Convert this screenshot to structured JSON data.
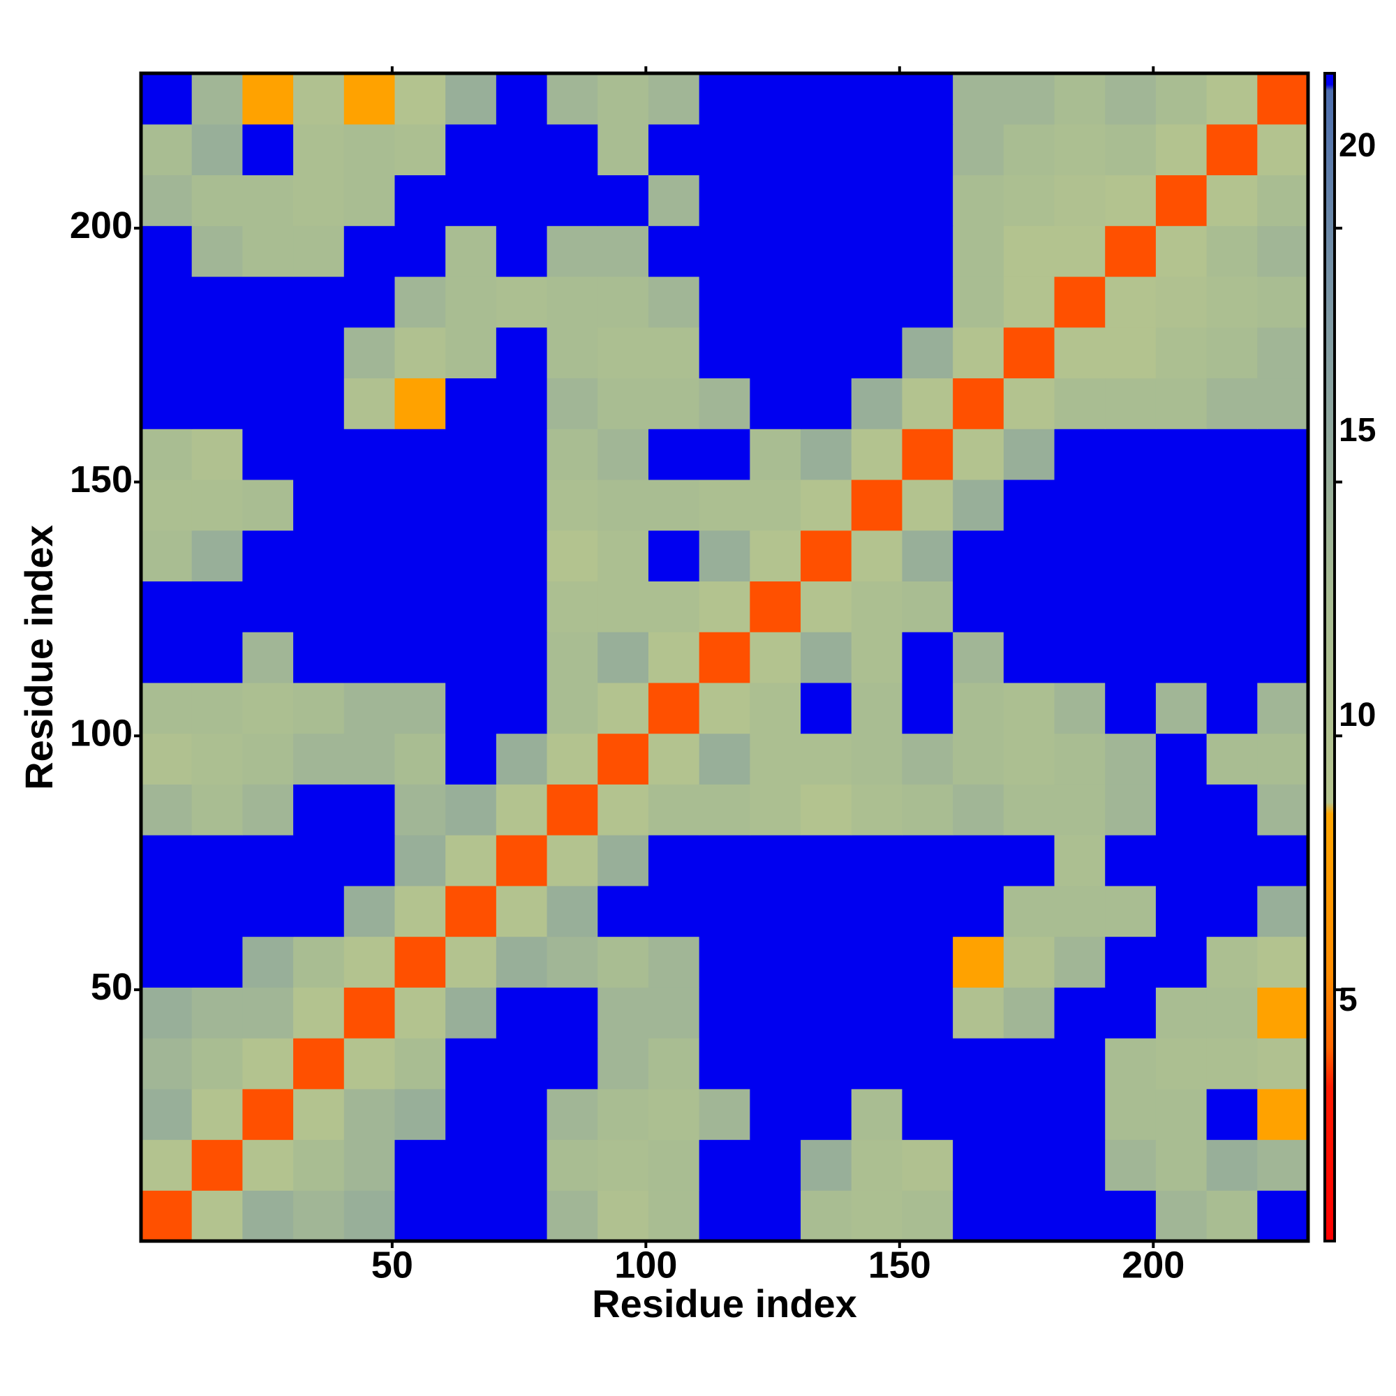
{
  "chart_data": {
    "type": "heatmap",
    "xlabel": "Residue index",
    "ylabel": "Residue index",
    "xlim": [
      0.5,
      230.5
    ],
    "ylim": [
      0.5,
      230.5
    ],
    "xticks": [
      50,
      100,
      150,
      200
    ],
    "yticks": [
      50,
      100,
      150,
      200
    ],
    "x": [
      5.5,
      15.5,
      25.5,
      35.5,
      45.5,
      55.5,
      65.5,
      75.5,
      85.5,
      95.5,
      105.5,
      115.5,
      125.5,
      135.5,
      145.5,
      155.5,
      165.5,
      175.5,
      185.5,
      195.5,
      205.5,
      215.5,
      225.5
    ],
    "y": [
      5.5,
      15.5,
      25.5,
      35.5,
      45.5,
      55.5,
      65.5,
      75.5,
      85.5,
      95.5,
      105.5,
      115.5,
      125.5,
      135.5,
      145.5,
      155.5,
      165.5,
      175.5,
      185.5,
      195.5,
      205.5,
      215.5,
      225.5
    ],
    "z": [
      [
        4,
        9,
        14,
        13,
        14,
        21.3,
        21.3,
        21.3,
        13,
        10,
        12,
        21.3,
        21.3,
        12,
        11,
        12,
        21.3,
        21.3,
        21.3,
        21.3,
        13,
        12,
        21.3
      ],
      [
        9,
        4,
        9,
        12,
        13,
        21.3,
        21.3,
        21.3,
        12,
        11,
        12,
        21.3,
        21.3,
        14,
        11,
        10,
        21.3,
        21.3,
        21.3,
        13,
        12,
        14,
        13
      ],
      [
        14,
        9,
        4,
        9,
        13,
        14,
        21.3,
        21.3,
        13,
        12,
        11,
        13,
        21.3,
        21.3,
        12,
        21.3,
        21.3,
        21.3,
        21.3,
        12,
        12,
        21.3,
        8
      ],
      [
        13,
        12,
        9,
        4,
        9,
        12,
        21.3,
        21.3,
        21.3,
        13,
        12,
        21.3,
        21.3,
        21.3,
        21.3,
        21.3,
        21.3,
        21.3,
        21.3,
        12,
        11,
        11,
        10
      ],
      [
        14,
        13,
        13,
        9,
        4,
        9,
        14,
        21.3,
        21.3,
        13,
        13,
        21.3,
        21.3,
        21.3,
        21.3,
        21.3,
        10,
        13,
        21.3,
        21.3,
        12,
        12,
        8
      ],
      [
        21.3,
        21.3,
        14,
        12,
        9,
        4,
        9,
        14,
        13,
        12,
        13,
        21.3,
        21.3,
        21.3,
        21.3,
        21.3,
        8,
        10,
        13,
        21.3,
        21.3,
        11,
        9
      ],
      [
        21.3,
        21.3,
        21.3,
        21.3,
        14,
        9,
        4,
        9,
        14,
        21.3,
        21.3,
        21.3,
        21.3,
        21.3,
        21.3,
        21.3,
        21.3,
        12,
        12,
        12,
        21.3,
        21.3,
        14
      ],
      [
        21.3,
        21.3,
        21.3,
        21.3,
        21.3,
        14,
        9,
        4,
        9,
        14,
        21.3,
        21.3,
        21.3,
        21.3,
        21.3,
        21.3,
        21.3,
        21.3,
        11,
        21.3,
        21.3,
        21.3,
        21.3
      ],
      [
        13,
        12,
        13,
        21.3,
        21.3,
        13,
        14,
        9,
        4,
        9,
        12,
        12,
        11,
        9,
        11,
        12,
        13,
        12,
        12,
        13,
        21.3,
        21.3,
        13
      ],
      [
        10,
        11,
        12,
        13,
        13,
        12,
        21.3,
        14,
        9,
        4,
        9,
        14,
        11,
        11,
        12,
        13,
        12,
        11,
        12,
        13,
        21.3,
        12,
        12
      ],
      [
        12,
        12,
        11,
        12,
        13,
        13,
        21.3,
        21.3,
        12,
        9,
        4,
        9,
        11,
        21.3,
        12,
        21.3,
        12,
        11,
        13,
        21.3,
        13,
        21.3,
        13
      ],
      [
        21.3,
        21.3,
        13,
        21.3,
        21.3,
        21.3,
        21.3,
        21.3,
        12,
        14,
        9,
        4,
        9,
        14,
        11,
        21.3,
        13,
        21.3,
        21.3,
        21.3,
        21.3,
        21.3,
        21.3
      ],
      [
        21.3,
        21.3,
        21.3,
        21.3,
        21.3,
        21.3,
        21.3,
        21.3,
        11,
        11,
        11,
        9,
        4,
        9,
        11,
        12,
        21.3,
        21.3,
        21.3,
        21.3,
        21.3,
        21.3,
        21.3
      ],
      [
        12,
        14,
        21.3,
        21.3,
        21.3,
        21.3,
        21.3,
        21.3,
        9,
        11,
        21.3,
        14,
        9,
        4,
        9,
        14,
        21.3,
        21.3,
        21.3,
        21.3,
        21.3,
        21.3,
        21.3
      ],
      [
        11,
        11,
        12,
        21.3,
        21.3,
        21.3,
        21.3,
        21.3,
        11,
        12,
        12,
        11,
        11,
        9,
        4,
        9,
        14,
        21.3,
        21.3,
        21.3,
        21.3,
        21.3,
        21.3
      ],
      [
        12,
        10,
        21.3,
        21.3,
        21.3,
        21.3,
        21.3,
        21.3,
        12,
        13,
        21.3,
        21.3,
        12,
        14,
        9,
        4,
        9,
        14,
        21.3,
        21.3,
        21.3,
        21.3,
        21.3
      ],
      [
        21.3,
        21.3,
        21.3,
        21.3,
        10,
        8,
        21.3,
        21.3,
        13,
        12,
        12,
        13,
        21.3,
        21.3,
        14,
        9,
        4,
        9,
        12,
        12,
        12,
        13,
        13
      ],
      [
        21.3,
        21.3,
        21.3,
        21.3,
        13,
        10,
        12,
        21.3,
        12,
        11,
        11,
        21.3,
        21.3,
        21.3,
        21.3,
        14,
        9,
        4,
        9,
        9,
        11,
        12,
        13
      ],
      [
        21.3,
        21.3,
        21.3,
        21.3,
        21.3,
        13,
        12,
        11,
        12,
        12,
        13,
        21.3,
        21.3,
        21.3,
        21.3,
        21.3,
        12,
        9,
        4,
        9,
        10,
        11,
        12
      ],
      [
        21.3,
        13,
        12,
        12,
        21.3,
        21.3,
        12,
        21.3,
        13,
        13,
        21.3,
        21.3,
        21.3,
        21.3,
        21.3,
        21.3,
        12,
        9,
        9,
        4,
        9,
        12,
        13
      ],
      [
        13,
        12,
        12,
        11,
        12,
        21.3,
        21.3,
        21.3,
        21.3,
        21.3,
        13,
        21.3,
        21.3,
        21.3,
        21.3,
        21.3,
        12,
        11,
        10,
        9,
        4,
        9,
        12
      ],
      [
        12,
        14,
        21.3,
        11,
        12,
        11,
        21.3,
        21.3,
        21.3,
        12,
        21.3,
        21.3,
        21.3,
        21.3,
        21.3,
        21.3,
        13,
        12,
        11,
        12,
        9,
        4,
        9
      ],
      [
        21.3,
        13,
        8,
        10,
        8,
        9,
        14,
        21.3,
        13,
        12,
        13,
        21.3,
        21.3,
        21.3,
        21.3,
        21.3,
        13,
        13,
        12,
        13,
        12,
        9,
        4
      ]
    ],
    "colorbar": {
      "lim": [
        0.8,
        21.3
      ],
      "ticks": [
        5,
        10,
        15,
        20
      ]
    },
    "colormap": [
      {
        "value": 0.8,
        "color": "#ff0000"
      },
      {
        "value": 3.5,
        "color": "#ff1a00"
      },
      {
        "value": 4.2,
        "color": "#ff6600"
      },
      {
        "value": 5.5,
        "color": "#ff8c00"
      },
      {
        "value": 8.3,
        "color": "#ffa500"
      },
      {
        "value": 8.5,
        "color": "#b5c48e"
      },
      {
        "value": 12,
        "color": "#a9bd92"
      },
      {
        "value": 17,
        "color": "#7f9aa4"
      },
      {
        "value": 21,
        "color": "#4d6eae"
      },
      {
        "value": 21.1,
        "color": "#0000f0"
      },
      {
        "value": 21.3,
        "color": "#0000f0"
      }
    ]
  }
}
